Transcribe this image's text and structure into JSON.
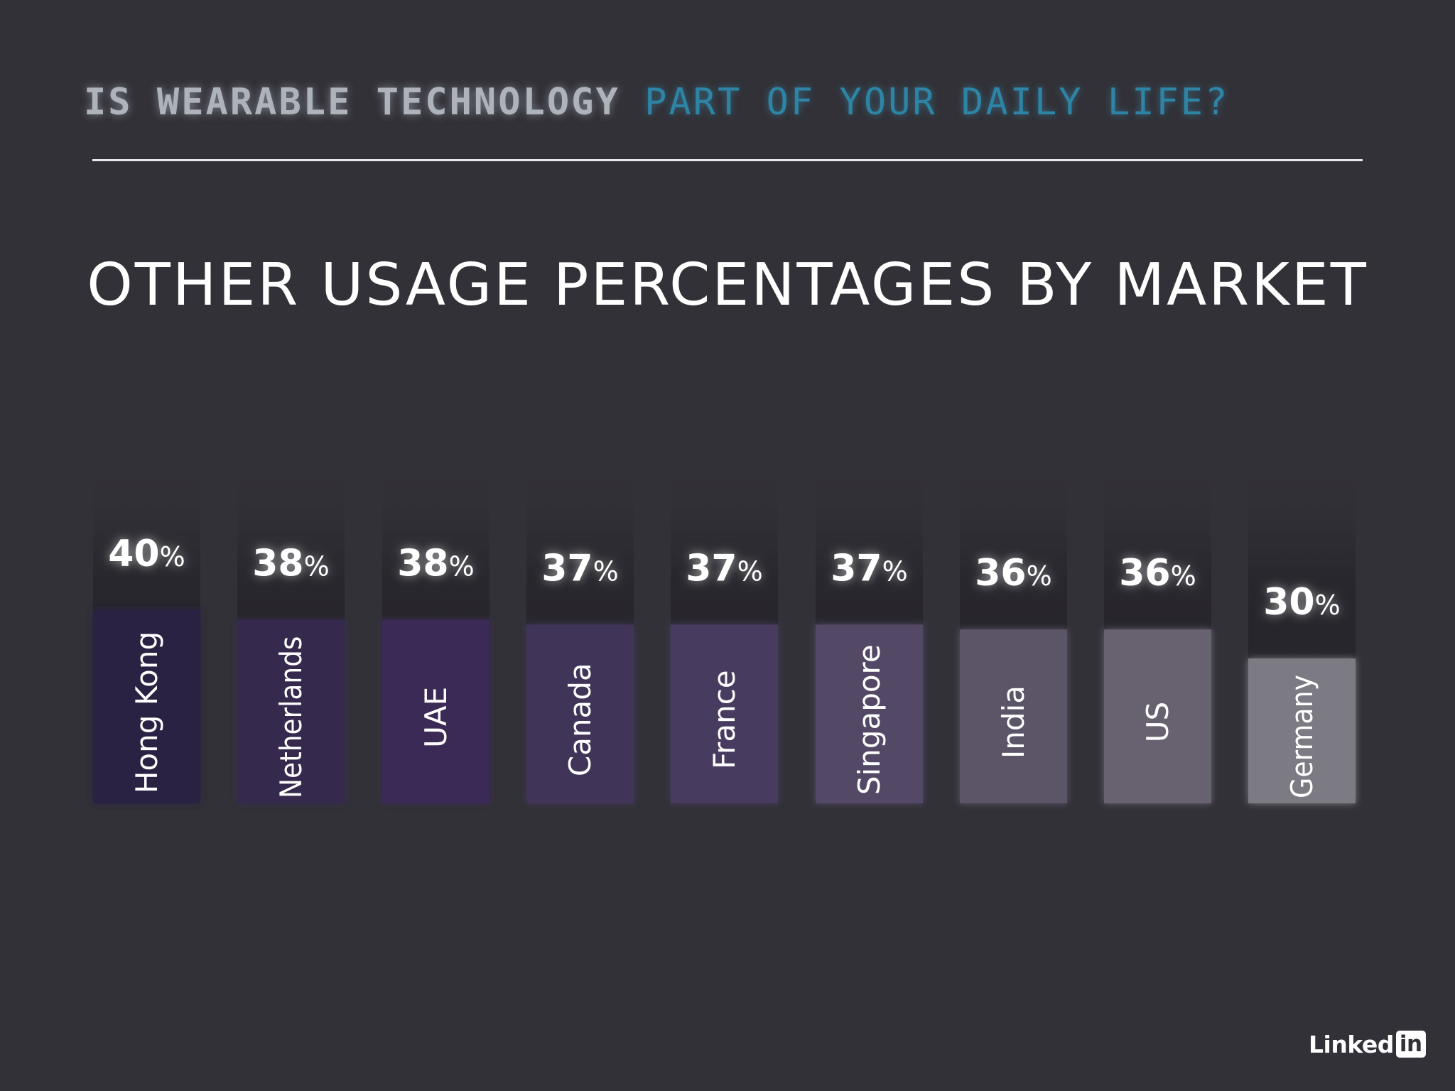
{
  "header": {
    "part1": "IS WEARABLE TECHNOLOGY",
    "part2": "PART OF YOUR DAILY LIFE?"
  },
  "logo": {
    "linked": "Linked",
    "in": "in"
  },
  "chart_data": {
    "type": "bar",
    "title": "OTHER USAGE PERCENTAGES BY MARKET",
    "categories": [
      "Hong Kong",
      "Netherlands",
      "UAE",
      "Canada",
      "France",
      "Singapore",
      "India",
      "US",
      "Germany"
    ],
    "values": [
      40,
      38,
      38,
      37,
      37,
      37,
      36,
      36,
      30
    ],
    "unit": "%",
    "colors": [
      "#2c2442",
      "#34294d",
      "#3a2c55",
      "#413459",
      "#463a5f",
      "#524866",
      "#5c5568",
      "#67626f",
      "#7b7a82"
    ],
    "track_color": "#2b2a30",
    "grid": false
  }
}
